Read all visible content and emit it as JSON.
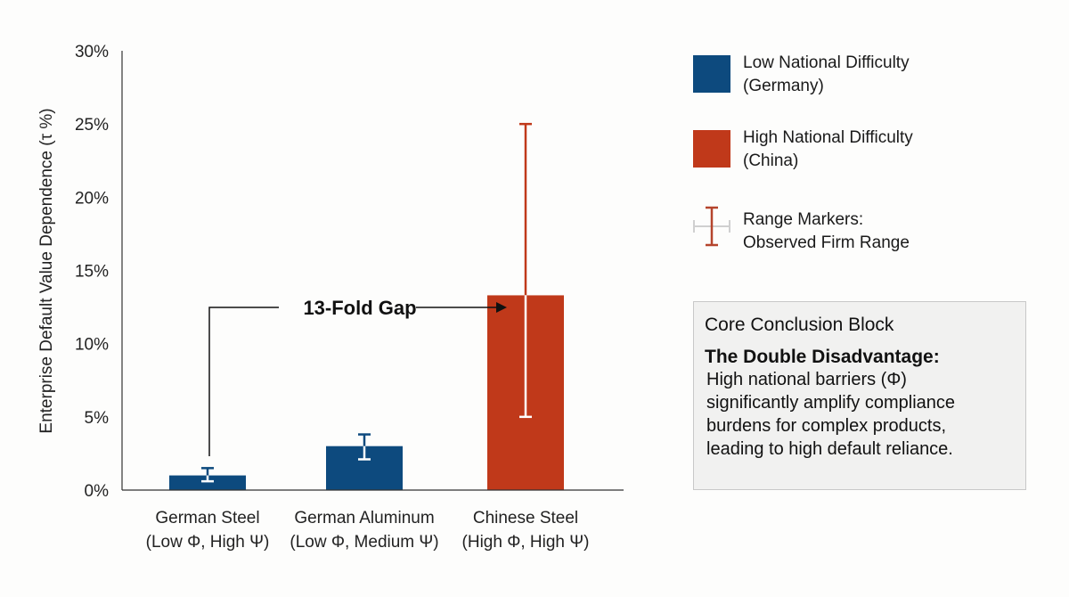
{
  "chart_data": {
    "type": "bar",
    "ylabel": "Enterprise Default Value Dependence (τ %)",
    "ylim": [
      0,
      30
    ],
    "yticks": [
      0,
      5,
      10,
      15,
      20,
      25,
      30
    ],
    "ytick_labels": [
      "0%",
      "5%",
      "10%",
      "15%",
      "20%",
      "25%",
      "30%"
    ],
    "grid": false,
    "categories": [
      {
        "line1": "German Steel",
        "line2": "(Low Φ, High Ψ)"
      },
      {
        "line1": "German Aluminum",
        "line2": "(Low Φ, Medium Ψ)"
      },
      {
        "line1": "Chinese Steel",
        "line2": "(High Φ, High Ψ)"
      }
    ],
    "values": [
      1.0,
      3.0,
      13.3
    ],
    "range_low": [
      0.6,
      2.1,
      5.0
    ],
    "range_high": [
      1.5,
      3.8,
      25.0
    ],
    "bar_groups": [
      "low",
      "low",
      "high"
    ],
    "colors": {
      "low": "#0d4a7e",
      "high": "#c0391a"
    },
    "annotation": "13-Fold Gap",
    "legend": [
      {
        "line1": "Low National Difficulty",
        "line2": "(Germany)",
        "color": "#0d4a7e"
      },
      {
        "line1": "High National Difficulty",
        "line2": "(China)",
        "color": "#c0391a"
      },
      {
        "line1": "Range Markers:",
        "line2": "Observed Firm Range",
        "color": "#b5442c"
      }
    ]
  },
  "conclusion": {
    "title": "Core Conclusion Block",
    "heading": "The Double Disadvantage:",
    "body": [
      "High national barriers (Φ)",
      "significantly amplify compliance",
      "burdens for complex products,",
      "leading to high default reliance."
    ]
  }
}
